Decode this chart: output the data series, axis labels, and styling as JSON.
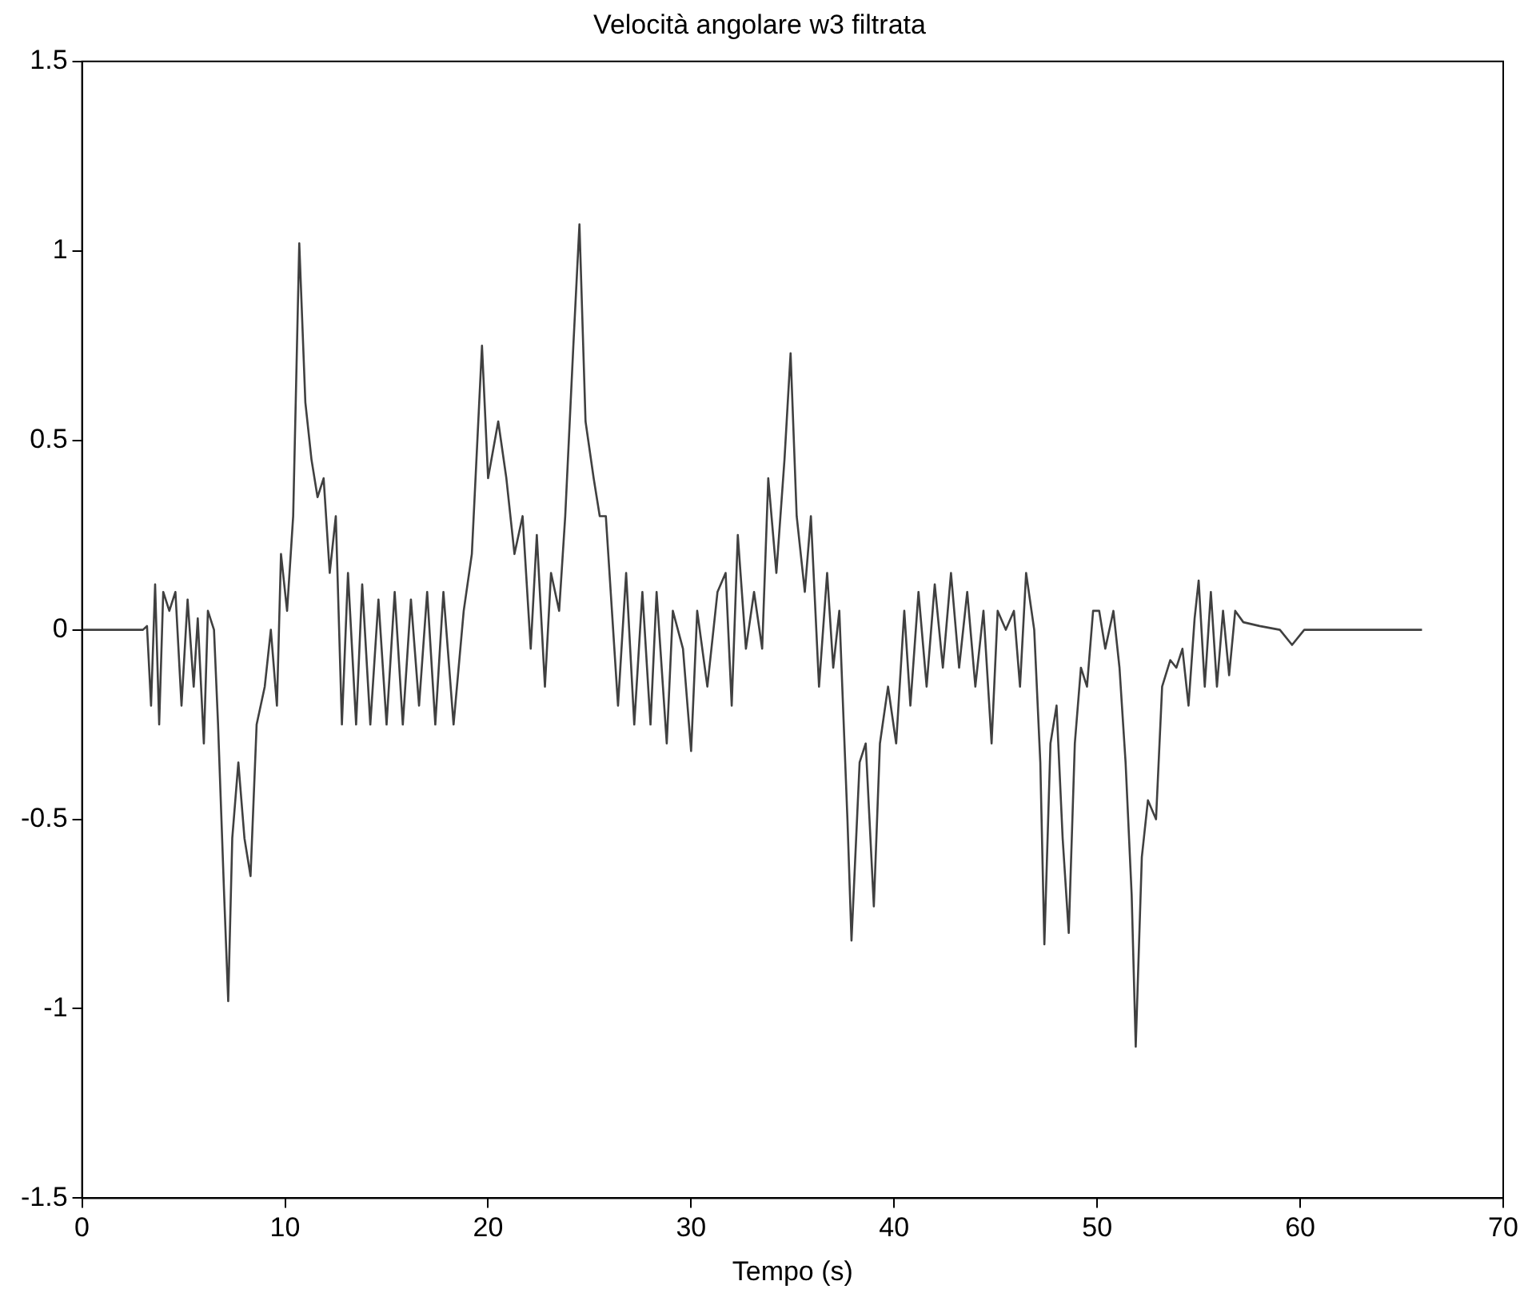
{
  "chart_data": {
    "type": "line",
    "title": "Velocità angolare w3 filtrata",
    "xlabel": "Tempo (s)",
    "xlim": [
      0,
      70
    ],
    "xticks": [
      0,
      10,
      20,
      30,
      40,
      50,
      60,
      70
    ],
    "ylim": [
      -1.5,
      1.5
    ],
    "yticks": [
      -1.5,
      -1,
      -0.5,
      0,
      0.5,
      1,
      1.5
    ],
    "grid": false,
    "legend": false,
    "marker": "none",
    "line_style": "solid",
    "series": [
      {
        "color": "#404040",
        "x": [
          0,
          3,
          3.2,
          3.4,
          3.6,
          3.8,
          4.0,
          4.3,
          4.6,
          4.9,
          5.2,
          5.5,
          5.7,
          6.0,
          6.2,
          6.5,
          6.7,
          7.0,
          7.2,
          7.4,
          7.7,
          8.0,
          8.3,
          8.6,
          9.0,
          9.3,
          9.6,
          9.8,
          10.1,
          10.4,
          10.7,
          11.0,
          11.3,
          11.6,
          11.9,
          12.2,
          12.5,
          12.8,
          13.1,
          13.5,
          13.8,
          14.2,
          14.6,
          15.0,
          15.4,
          15.8,
          16.2,
          16.6,
          17.0,
          17.4,
          17.8,
          18.3,
          18.8,
          19.2,
          19.7,
          20.0,
          20.5,
          20.9,
          21.3,
          21.7,
          22.1,
          22.4,
          22.8,
          23.1,
          23.5,
          23.8,
          24.2,
          24.5,
          24.8,
          25.2,
          25.5,
          25.8,
          26.1,
          26.4,
          26.8,
          27.2,
          27.6,
          28.0,
          28.3,
          28.8,
          29.1,
          29.6,
          30.0,
          30.3,
          30.8,
          31.3,
          31.7,
          32.0,
          32.3,
          32.7,
          33.1,
          33.5,
          33.8,
          34.2,
          34.6,
          34.9,
          35.2,
          35.6,
          35.9,
          36.3,
          36.7,
          37.0,
          37.3,
          37.7,
          37.9,
          38.3,
          38.6,
          39.0,
          39.3,
          39.7,
          40.1,
          40.5,
          40.8,
          41.2,
          41.6,
          42.0,
          42.4,
          42.8,
          43.2,
          43.6,
          44.0,
          44.4,
          44.8,
          45.1,
          45.5,
          45.9,
          46.2,
          46.5,
          46.9,
          47.2,
          47.4,
          47.7,
          48.0,
          48.3,
          48.6,
          48.9,
          49.2,
          49.5,
          49.8,
          50.1,
          50.4,
          50.8,
          51.1,
          51.4,
          51.7,
          51.9,
          52.2,
          52.5,
          52.9,
          53.2,
          53.6,
          53.9,
          54.2,
          54.5,
          54.8,
          55.0,
          55.3,
          55.6,
          55.9,
          56.2,
          56.5,
          56.8,
          57.2,
          58,
          59,
          59.6,
          60.2,
          61,
          66
        ],
        "values": [
          0,
          0,
          0.01,
          -0.2,
          0.12,
          -0.25,
          0.1,
          0.05,
          0.1,
          -0.2,
          0.08,
          -0.15,
          0.03,
          -0.3,
          0.05,
          0,
          -0.25,
          -0.7,
          -0.98,
          -0.55,
          -0.35,
          -0.55,
          -0.65,
          -0.25,
          -0.15,
          0,
          -0.2,
          0.2,
          0.05,
          0.3,
          1.02,
          0.6,
          0.45,
          0.35,
          0.4,
          0.15,
          0.3,
          -0.25,
          0.15,
          -0.25,
          0.12,
          -0.25,
          0.08,
          -0.25,
          0.1,
          -0.25,
          0.08,
          -0.2,
          0.1,
          -0.25,
          0.1,
          -0.25,
          0.05,
          0.2,
          0.75,
          0.4,
          0.55,
          0.4,
          0.2,
          0.3,
          -0.05,
          0.25,
          -0.15,
          0.15,
          0.05,
          0.3,
          0.75,
          1.07,
          0.55,
          0.4,
          0.3,
          0.3,
          0.05,
          -0.2,
          0.15,
          -0.25,
          0.1,
          -0.25,
          0.1,
          -0.3,
          0.05,
          -0.05,
          -0.32,
          0.05,
          -0.15,
          0.1,
          0.15,
          -0.2,
          0.25,
          -0.05,
          0.1,
          -0.05,
          0.4,
          0.15,
          0.45,
          0.73,
          0.3,
          0.1,
          0.3,
          -0.15,
          0.15,
          -0.1,
          0.05,
          -0.5,
          -0.82,
          -0.35,
          -0.3,
          -0.73,
          -0.3,
          -0.15,
          -0.3,
          0.05,
          -0.2,
          0.1,
          -0.15,
          0.12,
          -0.1,
          0.15,
          -0.1,
          0.1,
          -0.15,
          0.05,
          -0.3,
          0.05,
          0,
          0.05,
          -0.15,
          0.15,
          0,
          -0.35,
          -0.83,
          -0.3,
          -0.2,
          -0.55,
          -0.8,
          -0.3,
          -0.1,
          -0.15,
          0.05,
          0.05,
          -0.05,
          0.05,
          -0.1,
          -0.35,
          -0.7,
          -1.1,
          -0.6,
          -0.45,
          -0.5,
          -0.15,
          -0.08,
          -0.1,
          -0.05,
          -0.2,
          0.03,
          0.13,
          -0.15,
          0.1,
          -0.15,
          0.05,
          -0.12,
          0.05,
          0.02,
          0.01,
          0,
          -0.04,
          0,
          0,
          0
        ]
      }
    ]
  }
}
